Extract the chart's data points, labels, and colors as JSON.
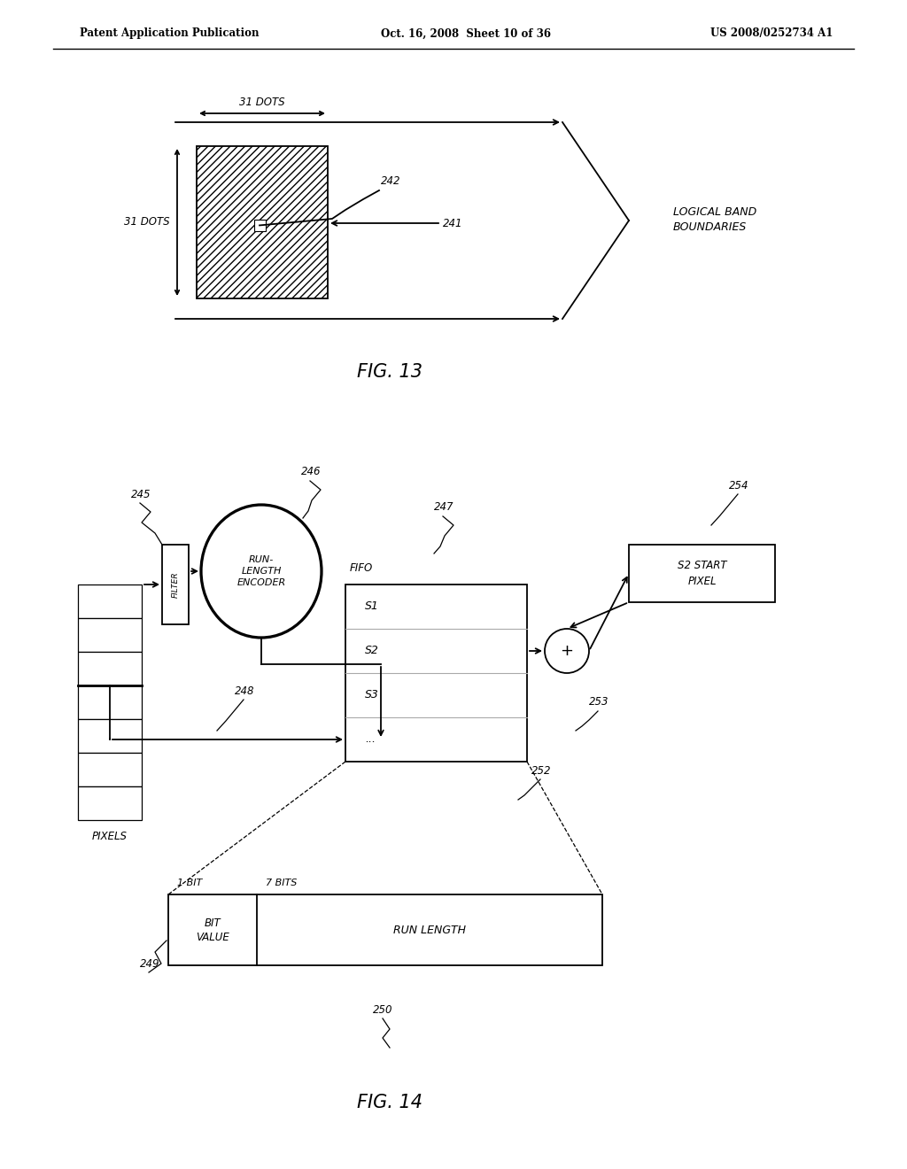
{
  "header_left": "Patent Application Publication",
  "header_mid": "Oct. 16, 2008  Sheet 10 of 36",
  "header_right": "US 2008/0252734 A1",
  "fig13_title": "FIG. 13",
  "fig14_title": "FIG. 14",
  "bg_color": "#ffffff",
  "line_color": "#000000",
  "label_242": "242",
  "label_241": "241",
  "label_31dots_h": "31 DOTS",
  "label_31dots_v": "31 DOTS",
  "label_logical": "LOGICAL BAND\nBOUNDARIES",
  "label_245": "245",
  "label_246": "246",
  "label_247": "247",
  "label_248": "248",
  "label_249": "249",
  "label_250": "250",
  "label_252": "252",
  "label_253": "253",
  "label_254": "254",
  "label_pixels": "PIXELS",
  "label_fifo": "FIFO",
  "label_filter": "FILTER",
  "label_rle": "RUN-\nLENGTH\nENCODER",
  "label_s1": "S1",
  "label_s2": "S2",
  "label_s3": "S3",
  "label_dots": "...",
  "label_plus": "+",
  "label_s2start": "S2 START\nPIXEL",
  "label_1bit": "1 BIT",
  "label_7bits": "7 BITS",
  "label_bitvalue": "BIT\nVALUE",
  "label_runlength": "RUN LENGTH"
}
